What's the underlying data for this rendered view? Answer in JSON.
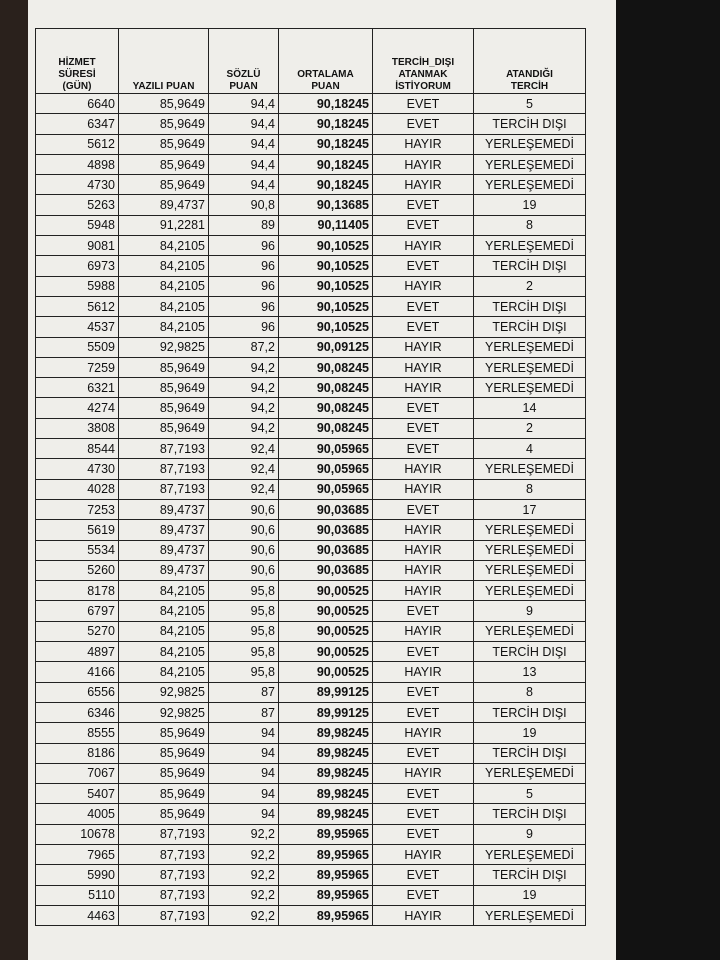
{
  "table": {
    "headers": [
      "HİZMET\nSÜRESİ\n(GÜN)",
      "YAZILI PUAN",
      "SÖZLÜ\nPUAN",
      "ORTALAMA\nPUAN",
      "TERCİH_DIŞI\nATANMAK\nİSTİYORUM",
      "ATANDIĞI\nTERCİH"
    ],
    "rows": [
      [
        "6640",
        "85,9649",
        "94,4",
        "90,18245",
        "EVET",
        "5"
      ],
      [
        "6347",
        "85,9649",
        "94,4",
        "90,18245",
        "EVET",
        "TERCİH DIŞI"
      ],
      [
        "5612",
        "85,9649",
        "94,4",
        "90,18245",
        "HAYIR",
        "YERLEŞEMEDİ"
      ],
      [
        "4898",
        "85,9649",
        "94,4",
        "90,18245",
        "HAYIR",
        "YERLEŞEMEDİ"
      ],
      [
        "4730",
        "85,9649",
        "94,4",
        "90,18245",
        "HAYIR",
        "YERLEŞEMEDİ"
      ],
      [
        "5263",
        "89,4737",
        "90,8",
        "90,13685",
        "EVET",
        "19"
      ],
      [
        "5948",
        "91,2281",
        "89",
        "90,11405",
        "EVET",
        "8"
      ],
      [
        "9081",
        "84,2105",
        "96",
        "90,10525",
        "HAYIR",
        "YERLEŞEMEDİ"
      ],
      [
        "6973",
        "84,2105",
        "96",
        "90,10525",
        "EVET",
        "TERCİH DIŞI"
      ],
      [
        "5988",
        "84,2105",
        "96",
        "90,10525",
        "HAYIR",
        "2"
      ],
      [
        "5612",
        "84,2105",
        "96",
        "90,10525",
        "EVET",
        "TERCİH DIŞI"
      ],
      [
        "4537",
        "84,2105",
        "96",
        "90,10525",
        "EVET",
        "TERCİH DIŞI"
      ],
      [
        "5509",
        "92,9825",
        "87,2",
        "90,09125",
        "HAYIR",
        "YERLEŞEMEDİ"
      ],
      [
        "7259",
        "85,9649",
        "94,2",
        "90,08245",
        "HAYIR",
        "YERLEŞEMEDİ"
      ],
      [
        "6321",
        "85,9649",
        "94,2",
        "90,08245",
        "HAYIR",
        "YERLEŞEMEDİ"
      ],
      [
        "4274",
        "85,9649",
        "94,2",
        "90,08245",
        "EVET",
        "14"
      ],
      [
        "3808",
        "85,9649",
        "94,2",
        "90,08245",
        "EVET",
        "2"
      ],
      [
        "8544",
        "87,7193",
        "92,4",
        "90,05965",
        "EVET",
        "4"
      ],
      [
        "4730",
        "87,7193",
        "92,4",
        "90,05965",
        "HAYIR",
        "YERLEŞEMEDİ"
      ],
      [
        "4028",
        "87,7193",
        "92,4",
        "90,05965",
        "HAYIR",
        "8"
      ],
      [
        "7253",
        "89,4737",
        "90,6",
        "90,03685",
        "EVET",
        "17"
      ],
      [
        "5619",
        "89,4737",
        "90,6",
        "90,03685",
        "HAYIR",
        "YERLEŞEMEDİ"
      ],
      [
        "5534",
        "89,4737",
        "90,6",
        "90,03685",
        "HAYIR",
        "YERLEŞEMEDİ"
      ],
      [
        "5260",
        "89,4737",
        "90,6",
        "90,03685",
        "HAYIR",
        "YERLEŞEMEDİ"
      ],
      [
        "8178",
        "84,2105",
        "95,8",
        "90,00525",
        "HAYIR",
        "YERLEŞEMEDİ"
      ],
      [
        "6797",
        "84,2105",
        "95,8",
        "90,00525",
        "EVET",
        "9"
      ],
      [
        "5270",
        "84,2105",
        "95,8",
        "90,00525",
        "HAYIR",
        "YERLEŞEMEDİ"
      ],
      [
        "4897",
        "84,2105",
        "95,8",
        "90,00525",
        "EVET",
        "TERCİH DIŞI"
      ],
      [
        "4166",
        "84,2105",
        "95,8",
        "90,00525",
        "HAYIR",
        "13"
      ],
      [
        "6556",
        "92,9825",
        "87",
        "89,99125",
        "EVET",
        "8"
      ],
      [
        "6346",
        "92,9825",
        "87",
        "89,99125",
        "EVET",
        "TERCİH DIŞI"
      ],
      [
        "8555",
        "85,9649",
        "94",
        "89,98245",
        "HAYIR",
        "19"
      ],
      [
        "8186",
        "85,9649",
        "94",
        "89,98245",
        "EVET",
        "TERCİH DIŞI"
      ],
      [
        "7067",
        "85,9649",
        "94",
        "89,98245",
        "HAYIR",
        "YERLEŞEMEDİ"
      ],
      [
        "5407",
        "85,9649",
        "94",
        "89,98245",
        "EVET",
        "5"
      ],
      [
        "4005",
        "85,9649",
        "94",
        "89,98245",
        "EVET",
        "TERCİH DIŞI"
      ],
      [
        "10678",
        "87,7193",
        "92,2",
        "89,95965",
        "EVET",
        "9"
      ],
      [
        "7965",
        "87,7193",
        "92,2",
        "89,95965",
        "HAYIR",
        "YERLEŞEMEDİ"
      ],
      [
        "5990",
        "87,7193",
        "92,2",
        "89,95965",
        "EVET",
        "TERCİH DIŞI"
      ],
      [
        "5110",
        "87,7193",
        "92,2",
        "89,95965",
        "EVET",
        "19"
      ],
      [
        "4463",
        "87,7193",
        "92,2",
        "89,95965",
        "HAYIR",
        "YERLEŞEMEDİ"
      ]
    ]
  }
}
